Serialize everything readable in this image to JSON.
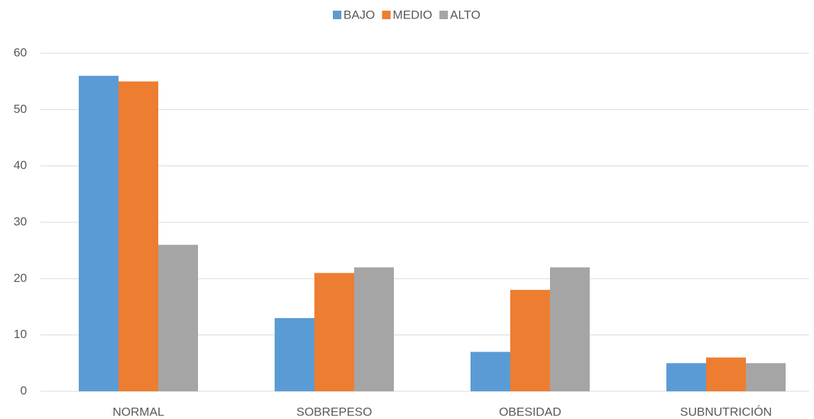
{
  "chart_data": {
    "type": "bar",
    "categories": [
      "NORMAL",
      "SOBREPESO",
      "OBESIDAD",
      "SUBNUTRICIÓN"
    ],
    "series": [
      {
        "name": "BAJO",
        "color": "#5b9bd5",
        "values": [
          56,
          13,
          7,
          5
        ]
      },
      {
        "name": "MEDIO",
        "color": "#ed7d31",
        "values": [
          55,
          21,
          18,
          6
        ]
      },
      {
        "name": "ALTO",
        "color": "#a5a5a5",
        "values": [
          26,
          22,
          22,
          5
        ]
      }
    ],
    "ylim": [
      0,
      60
    ],
    "yticks": [
      0,
      10,
      20,
      30,
      40,
      50,
      60
    ],
    "grid": true,
    "legend": "top"
  }
}
